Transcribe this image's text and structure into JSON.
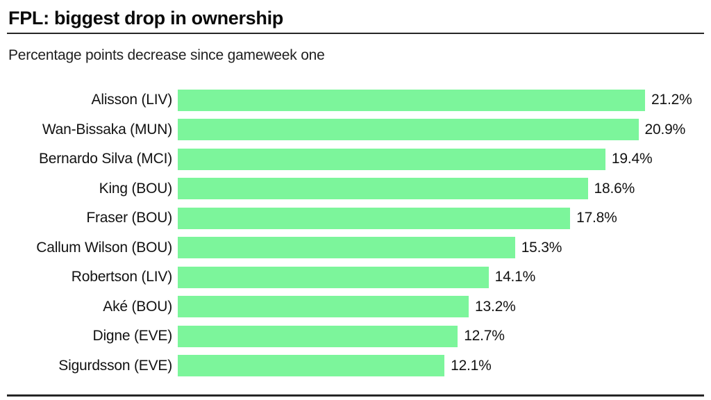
{
  "title": "FPL: biggest drop in ownership",
  "subtitle": "Percentage points decrease since gameweek one",
  "colors": {
    "bar": "#7cf59b",
    "rule": "#262626",
    "text": "#121212",
    "background": "#ffffff"
  },
  "chart_data": {
    "type": "bar",
    "orientation": "horizontal",
    "title": "FPL: biggest drop in ownership",
    "subtitle": "Percentage points decrease since gameweek one",
    "categories": [
      "Alisson (LIV)",
      "Wan-Bissaka (MUN)",
      "Bernardo Silva (MCI)",
      "King (BOU)",
      "Fraser (BOU)",
      "Callum Wilson (BOU)",
      "Robertson (LIV)",
      "Aké (BOU)",
      "Digne (EVE)",
      "Sigurdsson (EVE)"
    ],
    "values": [
      21.2,
      20.9,
      19.4,
      18.6,
      17.8,
      15.3,
      14.1,
      13.2,
      12.7,
      12.1
    ],
    "value_labels": [
      "21.2%",
      "20.9%",
      "19.4%",
      "18.6%",
      "17.8%",
      "15.3%",
      "14.1%",
      "13.2%",
      "12.7%",
      "12.1%"
    ],
    "xlabel": "",
    "ylabel": "",
    "xlim": [
      0,
      21.2
    ],
    "grid": false,
    "legend": false,
    "value_label_position": "outside-end"
  }
}
